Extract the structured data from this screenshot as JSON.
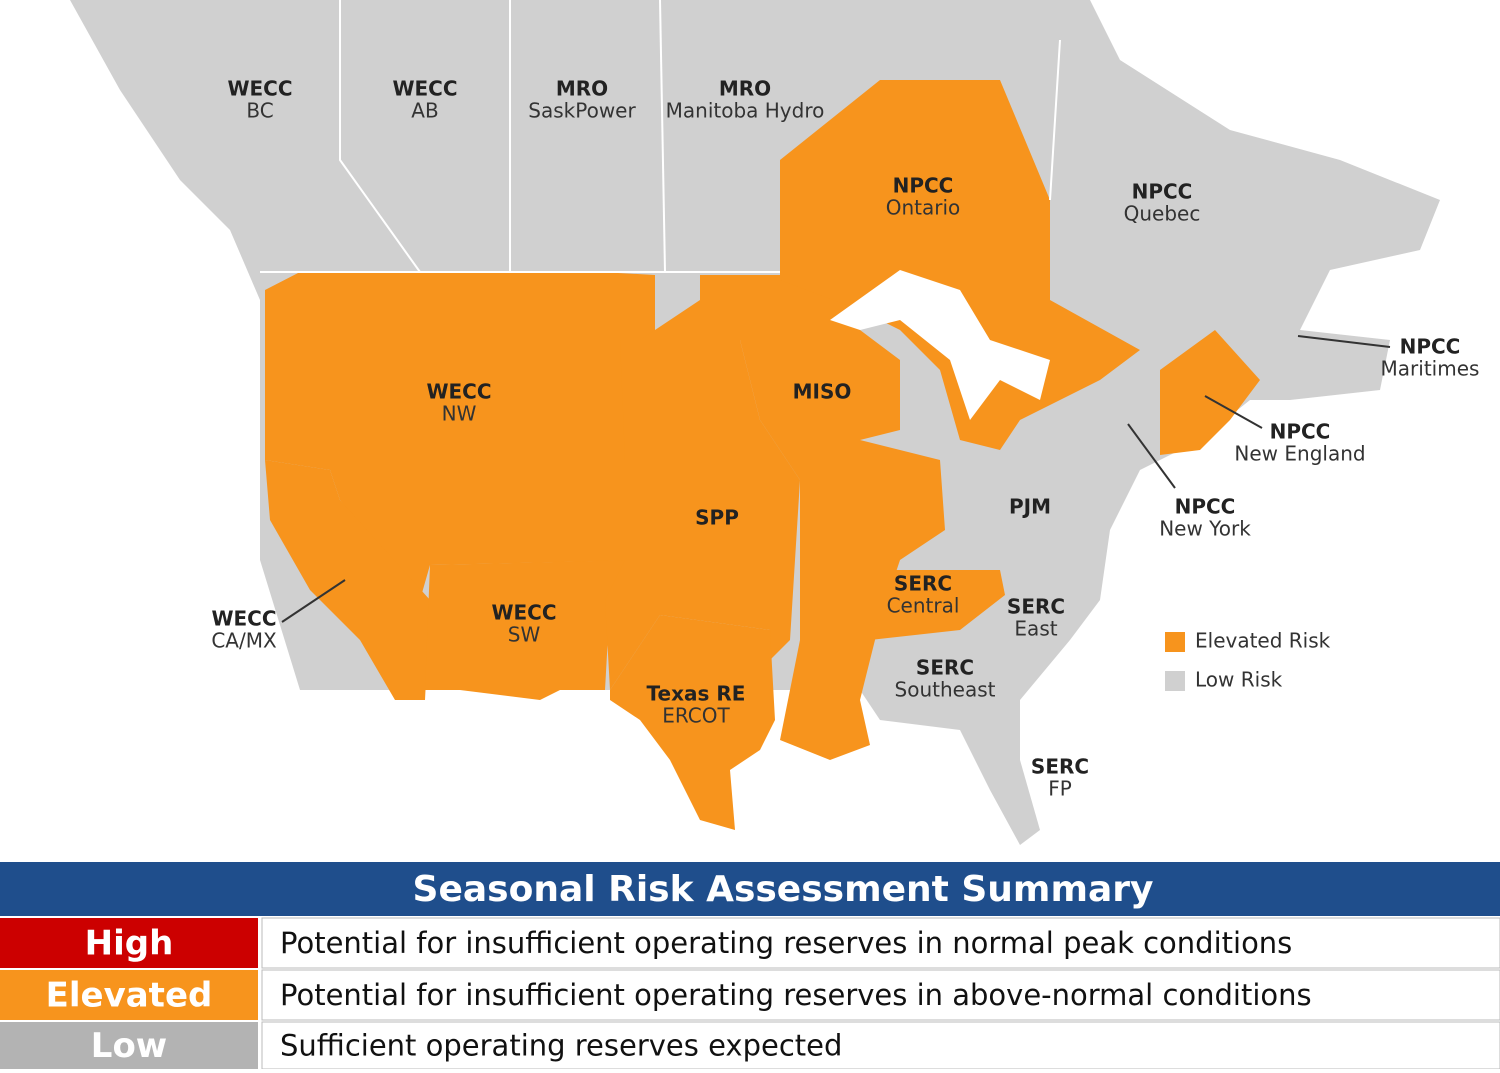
{
  "regions": [
    {
      "name": "WECC",
      "sub": "BC",
      "color": "#d0d0d0"
    },
    {
      "name": "WECC",
      "sub": "AB",
      "color": "#d0d0d0"
    },
    {
      "name": "MRO",
      "sub": "SaskPower",
      "color": "#d0d0d0"
    },
    {
      "name": "MRO",
      "sub": "Manitoba Hydro",
      "color": "#d0d0d0"
    },
    {
      "name": "NPCC",
      "sub": "Ontario",
      "color": "#f7941d"
    },
    {
      "name": "NPCC",
      "sub": "Quebec",
      "color": "#d0d0d0"
    },
    {
      "name": "NPCC",
      "sub": "Maritimes",
      "color": "#d0d0d0"
    },
    {
      "name": "NPCC",
      "sub": "New England",
      "color": "#f7941d"
    },
    {
      "name": "NPCC",
      "sub": "New York",
      "color": "#d0d0d0"
    },
    {
      "name": "WECC",
      "sub": "NW",
      "color": "#f7941d"
    },
    {
      "name": "MISO",
      "color": "#f7941d"
    },
    {
      "name": "SPP",
      "color": "#f7941d"
    },
    {
      "name": "PJM",
      "color": "#d0d0d0"
    },
    {
      "name": "WECC",
      "sub": "CA/MX",
      "color": "#f7941d"
    },
    {
      "name": "WECC",
      "sub": "SW",
      "color": "#f7941d"
    },
    {
      "name": "SERC",
      "sub": "Central",
      "color": "#f7941d"
    },
    {
      "name": "SERC",
      "sub": "East",
      "color": "#d0d0d0"
    },
    {
      "name": "SERC",
      "sub": "Southeast",
      "color": "#d0d0d0"
    },
    {
      "name": "Texas RE",
      "sub": "ERCOT",
      "color": "#f7941d"
    },
    {
      "name": "SERC",
      "sub": "FP",
      "color": "#d0d0d0"
    }
  ],
  "legend": [
    {
      "label": "Elevated Risk",
      "color": "#f7941d"
    },
    {
      "label": "Low Risk",
      "color": "#d0d0d0"
    }
  ],
  "table": {
    "title": "Seasonal Risk Assessment Summary",
    "rows": [
      {
        "level": "High",
        "description": "Potential for insufficient operating reserves in normal peak conditions",
        "color": "#cc0000"
      },
      {
        "level": "Elevated",
        "description": "Potential for insufficient operating reserves in above-normal conditions",
        "color": "#f7941d"
      },
      {
        "level": "Low",
        "description": "Sufficient operating reserves expected",
        "color": "#b3b3b3"
      }
    ]
  }
}
